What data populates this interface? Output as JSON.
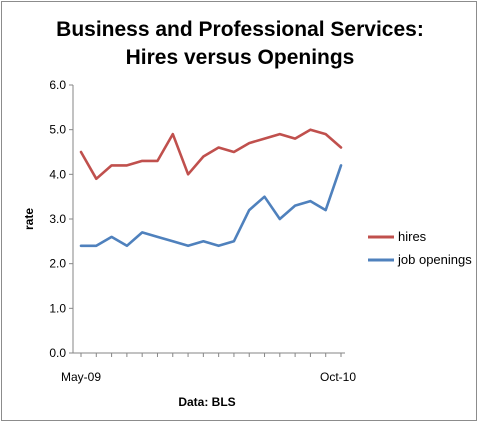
{
  "chart_data": {
    "type": "line",
    "title_lines": [
      "Business and Professional Services:",
      "Hires versus Openings"
    ],
    "xlabel": "Data: BLS",
    "ylabel": "rate",
    "ylim": [
      0,
      6
    ],
    "yticks": [
      "0.0",
      "1.0",
      "2.0",
      "3.0",
      "4.0",
      "5.0",
      "6.0"
    ],
    "x_tick_labels": {
      "first": "May-09",
      "last": "Oct-10"
    },
    "grid": false,
    "legend_position": "right",
    "series": [
      {
        "name": "hires",
        "color": "#c0504d",
        "values": [
          4.5,
          3.9,
          4.2,
          4.2,
          4.3,
          4.3,
          4.9,
          4.0,
          4.4,
          4.6,
          4.5,
          4.7,
          4.8,
          4.9,
          4.8,
          5.0,
          4.9,
          4.6
        ]
      },
      {
        "name": "job openings",
        "color": "#4f81bd",
        "values": [
          2.4,
          2.4,
          2.6,
          2.4,
          2.7,
          2.6,
          2.5,
          2.4,
          2.5,
          2.4,
          2.5,
          3.2,
          3.5,
          3.0,
          3.3,
          3.4,
          3.2,
          4.2
        ]
      }
    ]
  }
}
